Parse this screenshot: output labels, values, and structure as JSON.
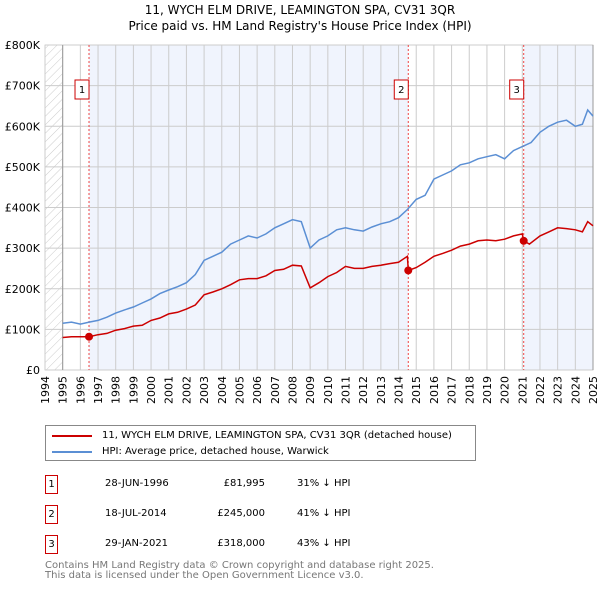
{
  "title_line1": "11, WYCH ELM DRIVE, LEAMINGTON SPA, CV31 3QR",
  "title_line2": "Price paid vs. HM Land Registry's House Price Index (HPI)",
  "chart_data": {
    "type": "line",
    "title": "11, WYCH ELM DRIVE, LEAMINGTON SPA, CV31 3QR - Price paid vs. HM Land Registry's House Price Index (HPI)",
    "xlim": [
      1994,
      2025
    ],
    "ylim": [
      0,
      800000
    ],
    "x_ticks": [
      "1994",
      "1995",
      "1996",
      "1997",
      "1998",
      "1999",
      "2000",
      "2001",
      "2002",
      "2003",
      "2004",
      "2005",
      "2006",
      "2007",
      "2008",
      "2009",
      "2010",
      "2011",
      "2012",
      "2013",
      "2014",
      "2015",
      "2016",
      "2017",
      "2018",
      "2019",
      "2020",
      "2021",
      "2022",
      "2023",
      "2024",
      "2025"
    ],
    "y_ticks": [
      {
        "v": 0,
        "label": "£0"
      },
      {
        "v": 100000,
        "label": "£100K"
      },
      {
        "v": 200000,
        "label": "£200K"
      },
      {
        "v": 300000,
        "label": "£300K"
      },
      {
        "v": 400000,
        "label": "£400K"
      },
      {
        "v": 500000,
        "label": "£500K"
      },
      {
        "v": 600000,
        "label": "£600K"
      },
      {
        "v": 700000,
        "label": "£700K"
      },
      {
        "v": 800000,
        "label": "£800K"
      }
    ],
    "grid": true,
    "series": [
      {
        "name": "11, WYCH ELM DRIVE, LEAMINGTON SPA, CV31 3QR (detached house)",
        "color": "#cc0000",
        "x": [
          1995,
          1995.5,
          1996,
          1996.5,
          1997,
          1997.5,
          1998,
          1998.5,
          1999,
          1999.5,
          2000,
          2000.5,
          2001,
          2001.5,
          2002,
          2002.5,
          2003,
          2003.5,
          2004,
          2004.5,
          2005,
          2005.5,
          2006,
          2006.5,
          2007,
          2007.5,
          2008,
          2008.5,
          2009,
          2009.5,
          2010,
          2010.5,
          2011,
          2011.5,
          2012,
          2012.5,
          2013,
          2013.5,
          2014,
          2014.5,
          2014.55,
          2015,
          2015.5,
          2016,
          2016.5,
          2017,
          2017.5,
          2018,
          2018.5,
          2019,
          2019.5,
          2020,
          2020.5,
          2021,
          2021.08,
          2021.4,
          2022,
          2022.5,
          2023,
          2023.5,
          2024,
          2024.4,
          2024.7,
          2025
        ],
        "y": [
          80000,
          82000,
          82000,
          82000,
          87000,
          90000,
          98000,
          102000,
          108000,
          110000,
          122000,
          128000,
          138000,
          142000,
          150000,
          160000,
          185000,
          192000,
          200000,
          210000,
          222000,
          225000,
          225000,
          232000,
          245000,
          248000,
          258000,
          256000,
          202000,
          215000,
          230000,
          240000,
          255000,
          250000,
          250000,
          255000,
          258000,
          262000,
          265000,
          280000,
          245000,
          252000,
          265000,
          280000,
          287000,
          295000,
          305000,
          310000,
          318000,
          320000,
          318000,
          322000,
          330000,
          335000,
          318000,
          310000,
          330000,
          340000,
          350000,
          348000,
          345000,
          340000,
          365000,
          355000
        ]
      },
      {
        "name": "HPI: Average price, detached house, Warwick",
        "color": "#5b8fd4",
        "x": [
          1995,
          1995.5,
          1996,
          1996.5,
          1997,
          1997.5,
          1998,
          1998.5,
          1999,
          1999.5,
          2000,
          2000.5,
          2001,
          2001.5,
          2002,
          2002.5,
          2003,
          2003.5,
          2004,
          2004.5,
          2005,
          2005.5,
          2006,
          2006.5,
          2007,
          2007.5,
          2008,
          2008.5,
          2009,
          2009.5,
          2010,
          2010.5,
          2011,
          2011.5,
          2012,
          2012.5,
          2013,
          2013.5,
          2014,
          2014.5,
          2015,
          2015.5,
          2016,
          2016.5,
          2017,
          2017.5,
          2018,
          2018.5,
          2019,
          2019.5,
          2020,
          2020.5,
          2021,
          2021.5,
          2022,
          2022.5,
          2023,
          2023.5,
          2024,
          2024.4,
          2024.7,
          2025
        ],
        "y": [
          115000,
          118000,
          113000,
          118000,
          122000,
          130000,
          140000,
          148000,
          155000,
          165000,
          175000,
          188000,
          197000,
          205000,
          215000,
          235000,
          270000,
          280000,
          290000,
          310000,
          320000,
          330000,
          325000,
          335000,
          350000,
          360000,
          370000,
          365000,
          300000,
          320000,
          330000,
          345000,
          350000,
          345000,
          342000,
          352000,
          360000,
          365000,
          375000,
          395000,
          420000,
          430000,
          470000,
          480000,
          490000,
          505000,
          510000,
          520000,
          525000,
          530000,
          520000,
          540000,
          550000,
          560000,
          585000,
          600000,
          610000,
          615000,
          600000,
          605000,
          640000,
          625000
        ]
      }
    ],
    "sales": [
      {
        "id": "1",
        "x": 1996.49,
        "y": 81995
      },
      {
        "id": "2",
        "x": 2014.55,
        "y": 245000
      },
      {
        "id": "3",
        "x": 2021.08,
        "y": 318000
      }
    ]
  },
  "legend": {
    "property_label": "11, WYCH ELM DRIVE, LEAMINGTON SPA, CV31 3QR (detached house)",
    "hpi_label": "HPI: Average price, detached house, Warwick"
  },
  "sales_table": [
    {
      "num": "1",
      "date": "28-JUN-1996",
      "price": "£81,995",
      "hpi": "31% ↓ HPI"
    },
    {
      "num": "2",
      "date": "18-JUL-2014",
      "price": "£245,000",
      "hpi": "41% ↓ HPI"
    },
    {
      "num": "3",
      "date": "29-JAN-2021",
      "price": "£318,000",
      "hpi": "43% ↓ HPI"
    }
  ],
  "footer": {
    "line1": "Contains HM Land Registry data © Crown copyright and database right 2025.",
    "line2": "This data is licensed under the Open Government Licence v3.0."
  }
}
